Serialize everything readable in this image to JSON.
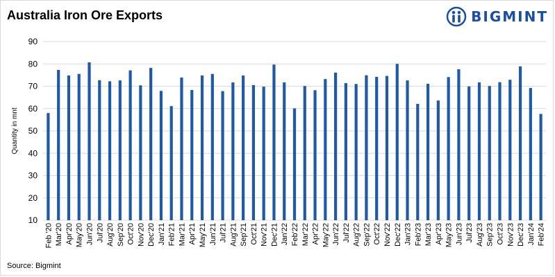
{
  "title": "Australia Iron Ore Exports",
  "logo": {
    "text": "BIGMINT",
    "color": "#1a4fa3"
  },
  "source": "Source: Bigmint",
  "chart_data": {
    "type": "bar",
    "title": "Australia Iron Ore Exports",
    "xlabel": "",
    "ylabel": "Quantity in mnt",
    "ylim": [
      10,
      90
    ],
    "yticks": [
      10,
      20,
      30,
      40,
      50,
      60,
      70,
      80,
      90
    ],
    "grid": true,
    "bar_color": "#1f5aa8",
    "categories": [
      "Feb '20",
      "Mar'20",
      "Apr'20",
      "May'20",
      "Jun'20",
      "Jul'20",
      "Aug'20",
      "Sep'20",
      "Oct'20",
      "Nov'20",
      "Dec'20",
      "Jan'21",
      "Feb'21",
      "Mar'21",
      "Apr'21",
      "May'21",
      "Jun'21",
      "Jul'21",
      "Aug'21",
      "Sep'21",
      "Oct'21",
      "Nov'21",
      "Dec'21",
      "Jan'22",
      "Feb'22",
      "Mar'22",
      "Apr'22",
      "May'22",
      "Jun'22",
      "Jul'22",
      "Aug'22",
      "Sep'22",
      "Oct'22",
      "Nov'22",
      "Dec'22",
      "Jan'23",
      "Feb'23",
      "Mar'23",
      "Apr'23",
      "May'23",
      "Jun'23",
      "Jul'23",
      "Aug'23",
      "Sep'23",
      "Oct'23",
      "Nov'23",
      "Dec'23",
      "Jan'24",
      "Feb'24"
    ],
    "values": [
      58,
      77.3,
      74.8,
      75.5,
      80.7,
      72.7,
      72.2,
      72.6,
      77.1,
      70.4,
      78.2,
      67.9,
      61.1,
      73.9,
      68.3,
      74.8,
      75.5,
      67.8,
      71.7,
      74.8,
      70.5,
      69.8,
      79.7,
      71.7,
      60.1,
      70.1,
      68.2,
      73.2,
      76.1,
      71.4,
      71,
      74.9,
      74.2,
      74.6,
      80,
      72.6,
      62.1,
      71.1,
      63.6,
      74.1,
      77.6,
      69.9,
      71.7,
      70.1,
      71.8,
      72.9,
      78.9,
      69.2,
      57.6
    ]
  }
}
